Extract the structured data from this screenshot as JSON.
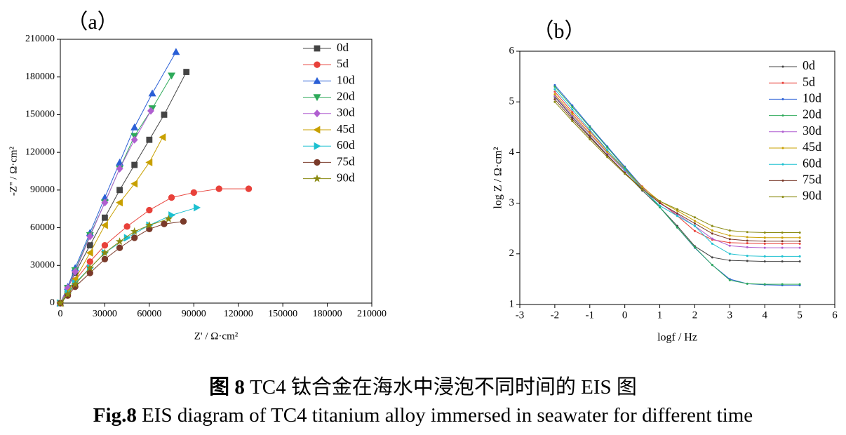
{
  "chart_data": [
    {
      "type": "scatter",
      "title": "（a）",
      "x_label": "Z' / Ω·cm²",
      "y_label": "-Z'' / Ω·cm²",
      "xlim": [
        0,
        210000
      ],
      "ylim": [
        0,
        210000
      ],
      "xticks": [
        0,
        30000,
        60000,
        90000,
        120000,
        150000,
        180000,
        210000
      ],
      "yticks": [
        0,
        30000,
        60000,
        90000,
        120000,
        150000,
        180000,
        210000
      ],
      "legend": "upper right",
      "series": [
        {
          "name": "0d",
          "color": "#444444",
          "marker": "square",
          "x": [
            0,
            5000,
            10000,
            20000,
            30000,
            40000,
            50000,
            60000,
            70000,
            85000
          ],
          "values": [
            0,
            12000,
            24000,
            46000,
            68000,
            90000,
            110000,
            130000,
            150000,
            184000
          ]
        },
        {
          "name": "5d",
          "color": "#e8413a",
          "marker": "circle",
          "x": [
            0,
            5000,
            10000,
            20000,
            30000,
            45000,
            60000,
            75000,
            90000,
            107000,
            127000
          ],
          "values": [
            0,
            9000,
            18000,
            33000,
            46000,
            61000,
            74000,
            84000,
            88000,
            91000,
            91000
          ]
        },
        {
          "name": "10d",
          "color": "#2a5fd6",
          "marker": "triangle-up",
          "x": [
            0,
            5000,
            10000,
            20000,
            30000,
            40000,
            50000,
            62000,
            78000
          ],
          "values": [
            0,
            13000,
            28000,
            56000,
            84000,
            112000,
            140000,
            167000,
            200000
          ]
        },
        {
          "name": "20d",
          "color": "#2eaa5a",
          "marker": "triangle-down",
          "x": [
            0,
            5000,
            10000,
            20000,
            30000,
            40000,
            50000,
            62000,
            75000
          ],
          "values": [
            0,
            12000,
            26000,
            54000,
            80000,
            107000,
            133000,
            155000,
            181000
          ]
        },
        {
          "name": "30d",
          "color": "#b05fd0",
          "marker": "diamond",
          "x": [
            0,
            5000,
            10000,
            20000,
            30000,
            40000,
            50000,
            61000
          ],
          "values": [
            0,
            12000,
            25000,
            53000,
            80000,
            107000,
            130000,
            153000
          ]
        },
        {
          "name": "45d",
          "color": "#c8a000",
          "marker": "triangle-left",
          "x": [
            0,
            5000,
            10000,
            20000,
            30000,
            40000,
            50000,
            60000,
            69000
          ],
          "values": [
            0,
            9000,
            19000,
            40000,
            62000,
            80000,
            95000,
            112000,
            132000
          ]
        },
        {
          "name": "60d",
          "color": "#1cc0d0",
          "marker": "triangle-right",
          "x": [
            0,
            5000,
            10000,
            20000,
            30000,
            45000,
            60000,
            75000,
            92000
          ],
          "values": [
            0,
            8000,
            16000,
            28000,
            40000,
            52000,
            62000,
            70000,
            76000
          ]
        },
        {
          "name": "75d",
          "color": "#7a3a2a",
          "marker": "circle",
          "x": [
            0,
            5000,
            10000,
            20000,
            30000,
            40000,
            50000,
            60000,
            70000,
            83000
          ],
          "values": [
            0,
            6000,
            13000,
            24000,
            35000,
            44000,
            52000,
            59000,
            63000,
            65000
          ]
        },
        {
          "name": "90d",
          "color": "#8a8a10",
          "marker": "star",
          "x": [
            0,
            5000,
            10000,
            20000,
            30000,
            40000,
            50000,
            60000,
            73000
          ],
          "values": [
            0,
            7000,
            15000,
            28000,
            40000,
            49000,
            57000,
            62000,
            67000
          ]
        }
      ]
    },
    {
      "type": "line",
      "title": "（b）",
      "x_label": "logf / Hz",
      "y_label": "log Z / Ω·cm²",
      "xlim": [
        -3,
        6
      ],
      "ylim": [
        1,
        6
      ],
      "xticks": [
        -3,
        -2,
        -1,
        0,
        1,
        2,
        3,
        4,
        5,
        6
      ],
      "yticks": [
        1,
        2,
        3,
        4,
        5,
        6
      ],
      "legend": "upper right",
      "x": [
        -2,
        -1.5,
        -1,
        -0.5,
        0,
        0.5,
        1,
        1.5,
        2,
        2.5,
        3,
        3.5,
        4,
        4.5,
        5
      ],
      "series": [
        {
          "name": "0d",
          "color": "#444444",
          "values": [
            5.1,
            4.7,
            4.32,
            3.95,
            3.6,
            3.25,
            2.92,
            2.55,
            2.15,
            1.93,
            1.87,
            1.86,
            1.85,
            1.85,
            1.85
          ]
        },
        {
          "name": "5d",
          "color": "#e8413a",
          "values": [
            5.2,
            4.8,
            4.42,
            4.04,
            3.68,
            3.33,
            3.02,
            2.75,
            2.45,
            2.28,
            2.22,
            2.21,
            2.2,
            2.2,
            2.2
          ]
        },
        {
          "name": "10d",
          "color": "#2a5fd6",
          "values": [
            5.33,
            4.93,
            4.52,
            4.12,
            3.72,
            3.32,
            2.92,
            2.52,
            2.12,
            1.78,
            1.5,
            1.41,
            1.39,
            1.38,
            1.38
          ]
        },
        {
          "name": "20d",
          "color": "#2eaa5a",
          "values": [
            5.3,
            4.9,
            4.5,
            4.1,
            3.7,
            3.3,
            2.92,
            2.52,
            2.13,
            1.78,
            1.48,
            1.41,
            1.4,
            1.4,
            1.4
          ]
        },
        {
          "name": "30d",
          "color": "#b05fd0",
          "values": [
            5.12,
            4.73,
            4.36,
            3.99,
            3.64,
            3.3,
            3.0,
            2.78,
            2.55,
            2.3,
            2.16,
            2.13,
            2.12,
            2.12,
            2.12
          ]
        },
        {
          "name": "45d",
          "color": "#c8a000",
          "values": [
            5.15,
            4.76,
            4.38,
            4.01,
            3.66,
            3.32,
            3.04,
            2.85,
            2.65,
            2.46,
            2.36,
            2.33,
            2.32,
            2.32,
            2.32
          ]
        },
        {
          "name": "60d",
          "color": "#1cc0d0",
          "values": [
            5.25,
            4.85,
            4.45,
            4.05,
            3.66,
            3.28,
            2.95,
            2.75,
            2.55,
            2.2,
            2.0,
            1.96,
            1.95,
            1.95,
            1.95
          ]
        },
        {
          "name": "75d",
          "color": "#7a3a2a",
          "values": [
            5.05,
            4.66,
            4.3,
            3.94,
            3.6,
            3.28,
            3.0,
            2.8,
            2.6,
            2.4,
            2.29,
            2.26,
            2.25,
            2.25,
            2.25
          ]
        },
        {
          "name": "90d",
          "color": "#8a8a10",
          "values": [
            5.0,
            4.62,
            4.26,
            3.91,
            3.58,
            3.27,
            3.04,
            2.88,
            2.72,
            2.55,
            2.46,
            2.43,
            2.42,
            2.42,
            2.42
          ]
        }
      ]
    }
  ],
  "caption": {
    "cn_label": "图 8",
    "cn_text": "TC4 钛合金在海水中浸泡不同时间的 EIS 图",
    "en_label": "Fig.8",
    "en_text": "EIS diagram of TC4 titanium alloy immersed in seawater for different time"
  }
}
